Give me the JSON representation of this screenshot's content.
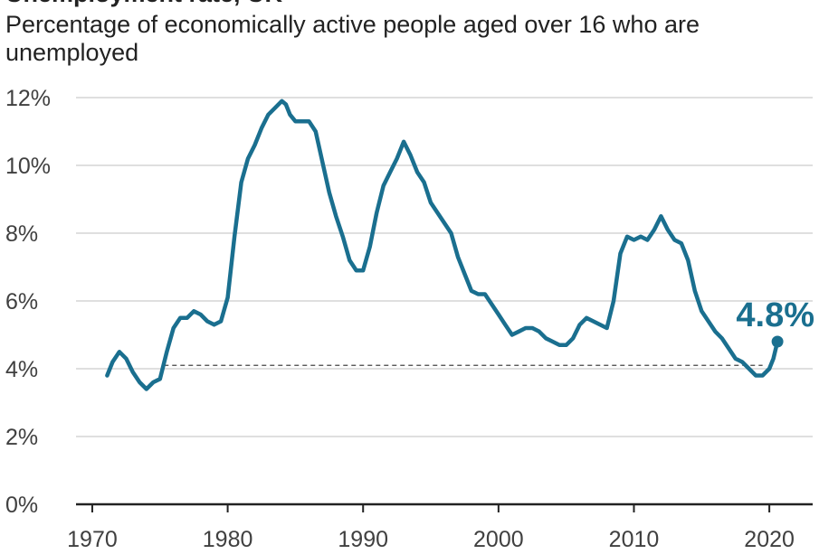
{
  "header": {
    "title": "Unemployment rate, UK",
    "subtitle": "Percentage of economically active people aged over 16 who are unemployed"
  },
  "colors": {
    "line": "#1a6f8f",
    "grid": "#cccccc",
    "axis": "#222222",
    "reference": "#444444"
  },
  "chart_data": {
    "type": "line",
    "title": "Unemployment rate, UK",
    "subtitle": "Percentage of economically active people aged over 16 who are unemployed",
    "xlabel": "",
    "ylabel": "",
    "xlim": [
      1968.8,
      2023.2
    ],
    "ylim": [
      0,
      12
    ],
    "y_ticks": [
      0,
      2,
      4,
      6,
      8,
      10,
      12
    ],
    "y_tick_labels": [
      "0%",
      "2%",
      "4%",
      "6%",
      "8%",
      "10%",
      "12%"
    ],
    "x_ticks": [
      1970,
      1980,
      1990,
      2000,
      2010,
      2020
    ],
    "x_tick_labels": [
      "1970",
      "1980",
      "1990",
      "2000",
      "2010",
      "2020"
    ],
    "grid": "horizontal",
    "series": [
      {
        "x": [
          1971.1,
          1971.5,
          1972.0,
          1972.5,
          1973.0,
          1973.5,
          1974.0,
          1974.5,
          1975.0,
          1975.5,
          1976.0,
          1976.5,
          1977.0,
          1977.5,
          1978.0,
          1978.5,
          1979.0,
          1979.5,
          1980.0,
          1980.5,
          1981.0,
          1981.5,
          1982.0,
          1982.5,
          1983.0,
          1983.5,
          1984.0,
          1984.3,
          1984.6,
          1985.0,
          1985.5,
          1986.0,
          1986.5,
          1987.0,
          1987.5,
          1988.0,
          1988.5,
          1989.0,
          1989.5,
          1990.0,
          1990.5,
          1991.0,
          1991.5,
          1992.0,
          1992.5,
          1993.0,
          1993.5,
          1994.0,
          1994.5,
          1995.0,
          1995.5,
          1996.0,
          1996.5,
          1997.0,
          1997.5,
          1998.0,
          1998.5,
          1999.0,
          1999.5,
          2000.0,
          2000.5,
          2001.0,
          2001.5,
          2002.0,
          2002.5,
          2003.0,
          2003.5,
          2004.0,
          2004.5,
          2005.0,
          2005.5,
          2006.0,
          2006.5,
          2007.0,
          2007.5,
          2008.0,
          2008.5,
          2009.0,
          2009.5,
          2010.0,
          2010.5,
          2011.0,
          2011.5,
          2012.0,
          2012.5,
          2013.0,
          2013.5,
          2014.0,
          2014.5,
          2015.0,
          2015.5,
          2016.0,
          2016.5,
          2017.0,
          2017.5,
          2018.0,
          2018.5,
          2019.0,
          2019.5,
          2020.0,
          2020.3,
          2020.6
        ],
        "values": [
          3.8,
          4.2,
          4.5,
          4.3,
          3.9,
          3.6,
          3.4,
          3.6,
          3.7,
          4.5,
          5.2,
          5.5,
          5.5,
          5.7,
          5.6,
          5.4,
          5.3,
          5.4,
          6.1,
          7.9,
          9.5,
          10.2,
          10.6,
          11.1,
          11.5,
          11.7,
          11.9,
          11.8,
          11.5,
          11.3,
          11.3,
          11.3,
          11.0,
          10.1,
          9.2,
          8.5,
          7.9,
          7.2,
          6.9,
          6.9,
          7.6,
          8.6,
          9.4,
          9.8,
          10.2,
          10.7,
          10.3,
          9.8,
          9.5,
          8.9,
          8.6,
          8.3,
          8.0,
          7.3,
          6.8,
          6.3,
          6.2,
          6.2,
          5.9,
          5.6,
          5.3,
          5.0,
          5.1,
          5.2,
          5.2,
          5.1,
          4.9,
          4.8,
          4.7,
          4.7,
          4.9,
          5.3,
          5.5,
          5.4,
          5.3,
          5.2,
          6.0,
          7.4,
          7.9,
          7.8,
          7.9,
          7.8,
          8.1,
          8.5,
          8.1,
          7.8,
          7.7,
          7.2,
          6.3,
          5.7,
          5.4,
          5.1,
          4.9,
          4.6,
          4.3,
          4.2,
          4.0,
          3.8,
          3.8,
          4.0,
          4.3,
          4.8
        ]
      }
    ],
    "reference_line": {
      "value": 4.1,
      "x_start": 1975.3,
      "x_end": 2019.5,
      "style": "dashed"
    },
    "annotations": [
      {
        "text": "4.8%",
        "x": 2020.6,
        "y": 4.8
      }
    ]
  }
}
